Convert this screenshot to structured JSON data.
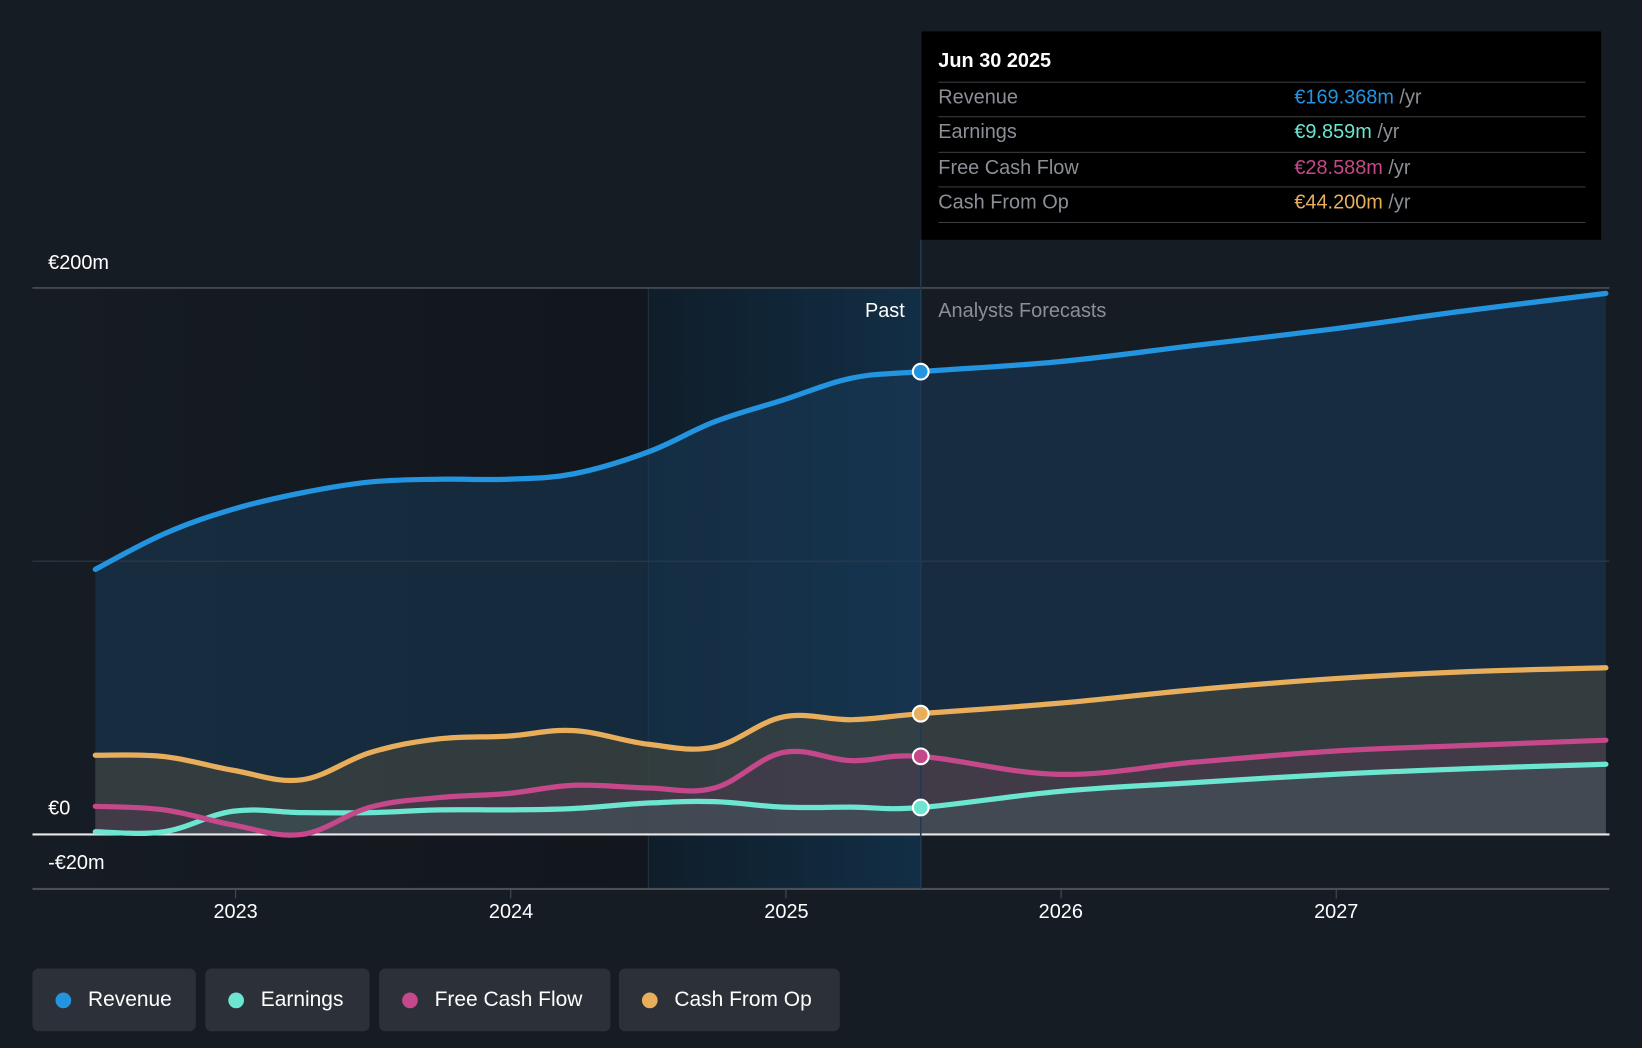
{
  "tooltip": {
    "date": "Jun 30 2025",
    "rows": [
      {
        "label": "Revenue",
        "value": "€169.368m",
        "unit": "/yr",
        "color": "#2394df"
      },
      {
        "label": "Earnings",
        "value": "€9.859m",
        "unit": "/yr",
        "color": "#6ce5d1"
      },
      {
        "label": "Free Cash Flow",
        "value": "€28.588m",
        "unit": "/yr",
        "color": "#c4488a"
      },
      {
        "label": "Cash From Op",
        "value": "€44.200m",
        "unit": "/yr",
        "color": "#e8ae5c"
      }
    ]
  },
  "regions": {
    "past": "Past",
    "forecast": "Analysts Forecasts"
  },
  "legend": [
    {
      "label": "Revenue",
      "color": "#2394df"
    },
    {
      "label": "Earnings",
      "color": "#6ce5d1"
    },
    {
      "label": "Free Cash Flow",
      "color": "#c4488a"
    },
    {
      "label": "Cash From Op",
      "color": "#e8ae5c"
    }
  ],
  "chart_data": {
    "type": "line",
    "title": "",
    "xlabel": "",
    "ylabel": "",
    "y_tick_labels": [
      "€200m",
      "€0",
      "-€20m"
    ],
    "y_ticks": [
      200,
      0,
      -20
    ],
    "ylim": [
      -20,
      200
    ],
    "x_tick_labels": [
      "2023",
      "2024",
      "2025",
      "2026",
      "2027"
    ],
    "x_ticks": [
      2023,
      2024,
      2025,
      2026,
      2027
    ],
    "xlim": [
      2022.25,
      2027.98
    ],
    "grid": true,
    "legend_position": "bottom-left",
    "past_forecast_divider": 2025.49,
    "highlight_band": [
      2024.5,
      2025.49
    ],
    "highlight_date": 2025.49,
    "x": [
      2022.49,
      2022.74,
      2022.99,
      2023.24,
      2023.49,
      2023.74,
      2023.99,
      2024.23,
      2024.5,
      2024.74,
      2024.99,
      2025.24,
      2025.49,
      2025.99,
      2026.49,
      2026.99,
      2027.46,
      2027.98
    ],
    "series": [
      {
        "name": "Revenue",
        "color": "#2394df",
        "values": [
          97,
          110,
          119,
          125,
          129,
          130,
          130,
          132,
          140,
          151,
          159,
          167,
          169.368,
          173,
          179,
          185,
          191.5,
          198
        ]
      },
      {
        "name": "Earnings",
        "color": "#6ce5d1",
        "values": [
          1,
          1,
          8.5,
          8,
          8,
          9,
          9,
          9.5,
          11.5,
          12,
          10,
          10,
          9.859,
          15.7,
          19,
          22,
          24,
          25.7
        ]
      },
      {
        "name": "Free Cash Flow",
        "color": "#c4488a",
        "values": [
          10.3,
          9,
          3.5,
          0,
          10,
          13.5,
          15,
          18,
          17,
          17,
          30,
          27,
          28.588,
          22,
          26.5,
          30.5,
          32.5,
          34.5
        ]
      },
      {
        "name": "Cash From Op",
        "color": "#e8ae5c",
        "values": [
          29,
          28.5,
          23.5,
          20,
          30,
          35,
          36,
          38,
          33,
          32,
          43,
          42,
          44.2,
          48,
          53,
          57,
          59.5,
          61
        ]
      }
    ]
  }
}
